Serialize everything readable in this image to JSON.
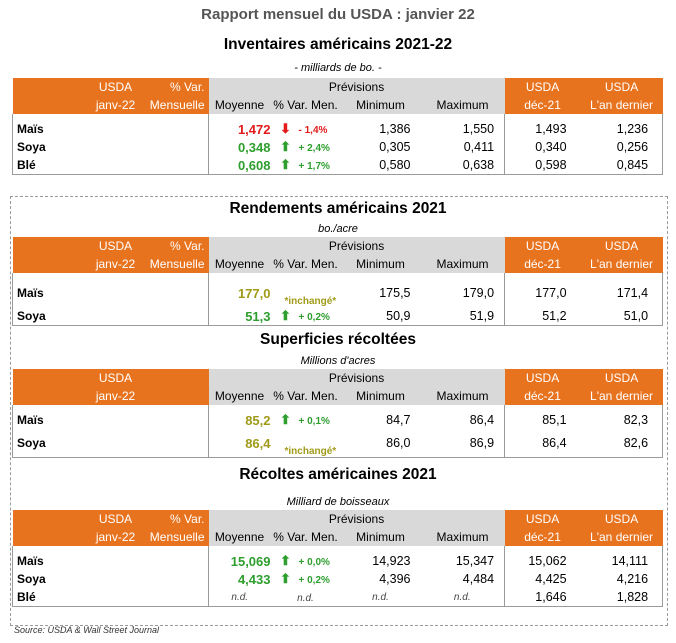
{
  "main_title": "Rapport mensuel du USDA : janvier 22",
  "headers": {
    "usda": "USDA",
    "janv": "janv-22",
    "pct_var": "% Var.",
    "mensuelle": "Mensuelle",
    "previsions": "Prévisions",
    "moyenne": "Moyenne",
    "pct_var_men": "% Var. Men.",
    "minimum": "Minimum",
    "maximum": "Maximum",
    "dec": "déc-21",
    "an_dernier": "L'an dernier"
  },
  "sections": [
    {
      "title": "Inventaires américains 2021-22",
      "unit": "- milliards de bo.  -",
      "show_pct_var": true,
      "rows": [
        {
          "label": "Maïs",
          "moyenne": "1,472",
          "moy_color": "red",
          "arrow": "down",
          "var": "- 1,4%",
          "var_color": "red",
          "min": "1,386",
          "max": "1,550",
          "dec": "1,493",
          "an": "1,236"
        },
        {
          "label": "Soya",
          "moyenne": "0,348",
          "moy_color": "grn",
          "arrow": "up",
          "var": "+ 2,4%",
          "var_color": "grn",
          "min": "0,305",
          "max": "0,411",
          "dec": "0,340",
          "an": "0,256"
        },
        {
          "label": "Blé",
          "moyenne": "0,608",
          "moy_color": "grn",
          "arrow": "up",
          "var": "+ 1,7%",
          "var_color": "grn",
          "min": "0,580",
          "max": "0,638",
          "dec": "0,598",
          "an": "0,845"
        }
      ]
    },
    {
      "title": "Rendements américains 2021",
      "unit": "bo./acre",
      "show_pct_var": true,
      "rows": [
        {
          "label": "Maïs",
          "moyenne": "177,0",
          "moy_color": "olv",
          "arrow": "",
          "var": "*inchangé*",
          "var_color": "olv",
          "min": "175,5",
          "max": "179,0",
          "dec": "177,0",
          "an": "171,4"
        },
        {
          "label": "Soya",
          "moyenne": "51,3",
          "moy_color": "grn",
          "arrow": "up",
          "var": "+ 0,2%",
          "var_color": "grn",
          "min": "50,9",
          "max": "51,9",
          "dec": "51,2",
          "an": "51,0"
        }
      ]
    },
    {
      "title": "Superficies récoltées",
      "unit": "Millions d'acres",
      "show_pct_var": false,
      "rows": [
        {
          "label": "Maïs",
          "moyenne": "85,2",
          "moy_color": "olv",
          "arrow": "up",
          "var": "+ 0,1%",
          "var_color": "grn",
          "min": "84,7",
          "max": "86,4",
          "dec": "85,1",
          "an": "82,3"
        },
        {
          "label": "Soya",
          "moyenne": "86,4",
          "moy_color": "olv",
          "arrow": "",
          "var": "*inchangé*",
          "var_color": "olv",
          "min": "86,0",
          "max": "86,9",
          "dec": "86,4",
          "an": "82,6"
        }
      ]
    },
    {
      "title": "Récoltes américaines 2021",
      "unit": "Milliard de boisseaux",
      "show_pct_var": true,
      "rows": [
        {
          "label": "Maïs",
          "moyenne": "15,069",
          "moy_color": "grn",
          "arrow": "up",
          "var": "+ 0,0%",
          "var_color": "grn",
          "min": "14,923",
          "max": "15,347",
          "dec": "15,062",
          "an": "14,111"
        },
        {
          "label": "Soya",
          "moyenne": "4,433",
          "moy_color": "grn",
          "arrow": "up",
          "var": "+ 0,2%",
          "var_color": "grn",
          "min": "4,396",
          "max": "4,484",
          "dec": "4,425",
          "an": "4,216"
        },
        {
          "label": "Blé",
          "moyenne": "n.d.",
          "moy_color": "nd",
          "arrow": "",
          "var": "n.d.",
          "var_color": "nd",
          "min": "n.d.",
          "max": "n.d.",
          "dec": "1,646",
          "an": "1,828"
        }
      ]
    }
  ],
  "source": "Source: USDA & Wall Street Journal",
  "colors": {
    "accent": "#e8731f",
    "header_grey": "#d9d9d9",
    "red": "#e31b1b",
    "green": "#2e9e2e",
    "olive": "#a09a18"
  }
}
